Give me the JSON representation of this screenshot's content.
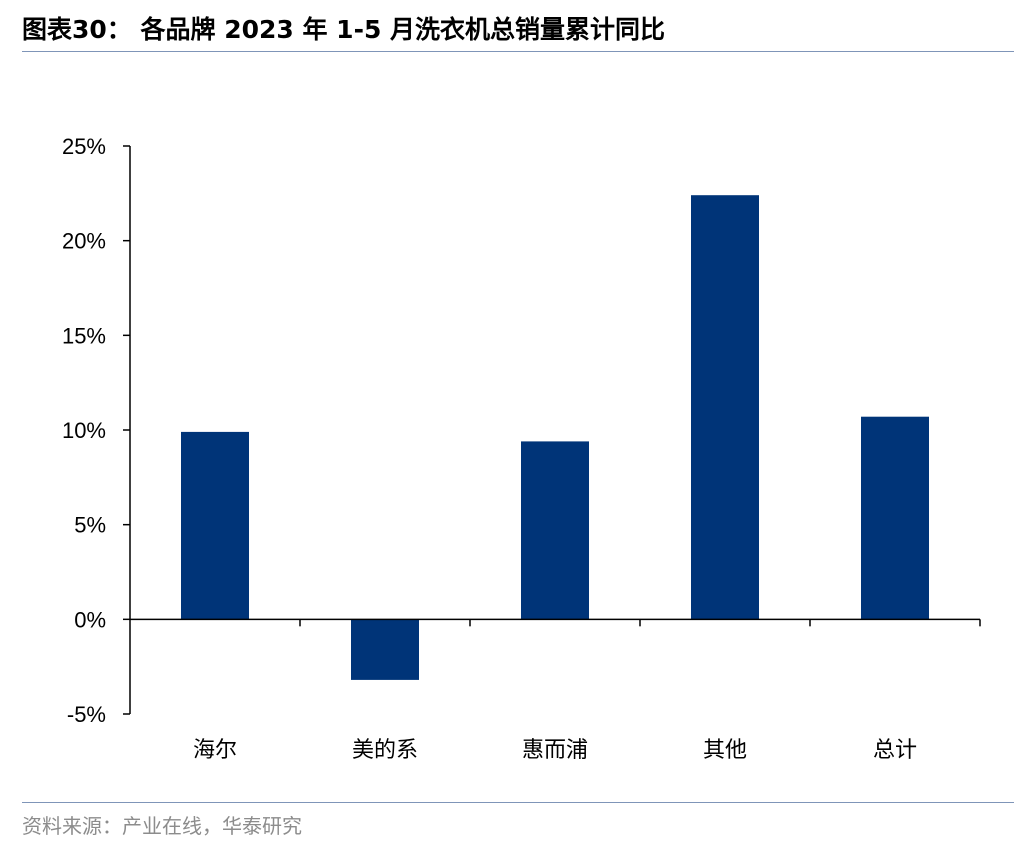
{
  "header": {
    "title": "图表30：  各品牌 2023 年 1-5 月洗衣机总销量累计同比"
  },
  "footer": {
    "source": "资料来源：产业在线，华泰研究"
  },
  "colors": {
    "bar": "#003478",
    "axis": "#000000",
    "rule": "#7f95b8"
  },
  "chart_data": {
    "type": "bar",
    "title": "",
    "xlabel": "",
    "ylabel": "",
    "categories": [
      "海尔",
      "美的系",
      "惠而浦",
      "其他",
      "总计"
    ],
    "values": [
      9.9,
      -3.2,
      9.4,
      22.4,
      10.7
    ],
    "unit": "%",
    "ylim": [
      -5,
      25
    ],
    "yticks": [
      "-5%",
      "0%",
      "5%",
      "10%",
      "15%",
      "20%",
      "25%"
    ],
    "ytick_values": [
      -5,
      0,
      5,
      10,
      15,
      20,
      25
    ],
    "grid": false,
    "legend": "none"
  }
}
